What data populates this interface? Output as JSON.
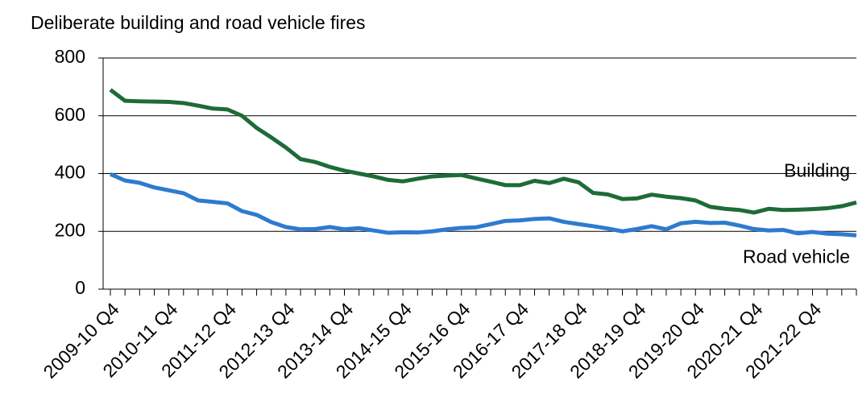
{
  "chart_data": {
    "type": "line",
    "title": "Deliberate building and road vehicle fires",
    "categories": [
      "2009-10 Q4",
      null,
      null,
      null,
      "2010-11 Q4",
      null,
      null,
      null,
      "2011-12 Q4",
      null,
      null,
      null,
      "2012-13 Q4",
      null,
      null,
      null,
      "2013-14 Q4",
      null,
      null,
      null,
      "2014-15 Q4",
      null,
      null,
      null,
      "2015-16 Q4",
      null,
      null,
      null,
      "2016-17 Q4",
      null,
      null,
      null,
      "2017-18 Q4",
      null,
      null,
      null,
      "2018-19 Q4",
      null,
      null,
      null,
      "2019-20 Q4",
      null,
      null,
      null,
      "2020-21 Q4",
      null,
      null,
      null,
      "2021-22 Q4",
      null,
      null,
      null
    ],
    "series": [
      {
        "name": "Building",
        "color": "#1e6b36",
        "values": [
          690,
          652,
          650,
          649,
          648,
          644,
          635,
          625,
          622,
          600,
          558,
          525,
          490,
          450,
          440,
          423,
          410,
          400,
          390,
          378,
          373,
          382,
          390,
          393,
          395,
          383,
          372,
          360,
          360,
          375,
          367,
          382,
          370,
          333,
          328,
          312,
          314,
          327,
          320,
          315,
          307,
          285,
          278,
          274,
          265,
          278,
          274,
          275,
          277,
          280,
          287,
          300
        ]
      },
      {
        "name": "Road vehicle",
        "color": "#2e7bcf",
        "values": [
          398,
          376,
          368,
          352,
          342,
          332,
          307,
          302,
          297,
          270,
          257,
          232,
          215,
          207,
          208,
          215,
          207,
          211,
          203,
          195,
          197,
          196,
          200,
          207,
          212,
          214,
          225,
          236,
          238,
          243,
          245,
          233,
          225,
          218,
          210,
          200,
          208,
          218,
          207,
          228,
          233,
          229,
          230,
          220,
          208,
          203,
          205,
          193,
          198,
          192,
          190,
          186
        ]
      }
    ],
    "ylim": [
      0,
      800
    ],
    "yticks": [
      0,
      200,
      400,
      600,
      800
    ],
    "grid": true
  }
}
